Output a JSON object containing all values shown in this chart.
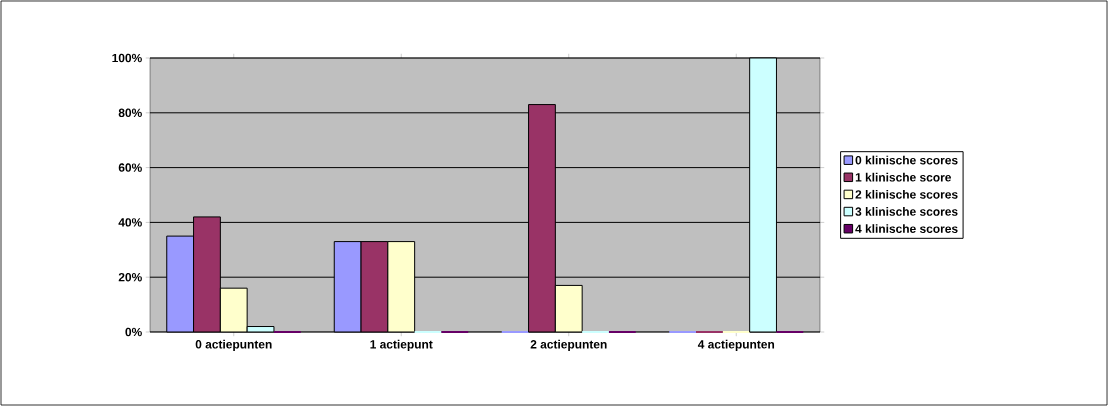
{
  "chart_data": {
    "type": "bar",
    "categories": [
      "0 actiepunten",
      "1 actiepunt",
      "2 actiepunten",
      "4 actiepunten"
    ],
    "series": [
      {
        "name": "0 klinische scores",
        "color": "#9999ff",
        "values": [
          35,
          33,
          0,
          0
        ]
      },
      {
        "name": "1 klinische score",
        "color": "#993366",
        "values": [
          42,
          33,
          83,
          0
        ]
      },
      {
        "name": "2 klinische scores",
        "color": "#ffffcc",
        "values": [
          16,
          33,
          17,
          0
        ]
      },
      {
        "name": "3 klinische scores",
        "color": "#ccffff",
        "values": [
          2,
          0,
          0,
          100
        ]
      },
      {
        "name": "4 klinische scores",
        "color": "#660066",
        "values": [
          0,
          0,
          0,
          0
        ]
      }
    ],
    "ylim": [
      0,
      100
    ],
    "yticks": [
      {
        "value": 0,
        "label": "0%"
      },
      {
        "value": 20,
        "label": "20%"
      },
      {
        "value": 40,
        "label": "40%"
      },
      {
        "value": 60,
        "label": "60%"
      },
      {
        "value": 80,
        "label": "80%"
      },
      {
        "value": 100,
        "label": "100%"
      }
    ],
    "grid": "y",
    "legend": "right"
  }
}
